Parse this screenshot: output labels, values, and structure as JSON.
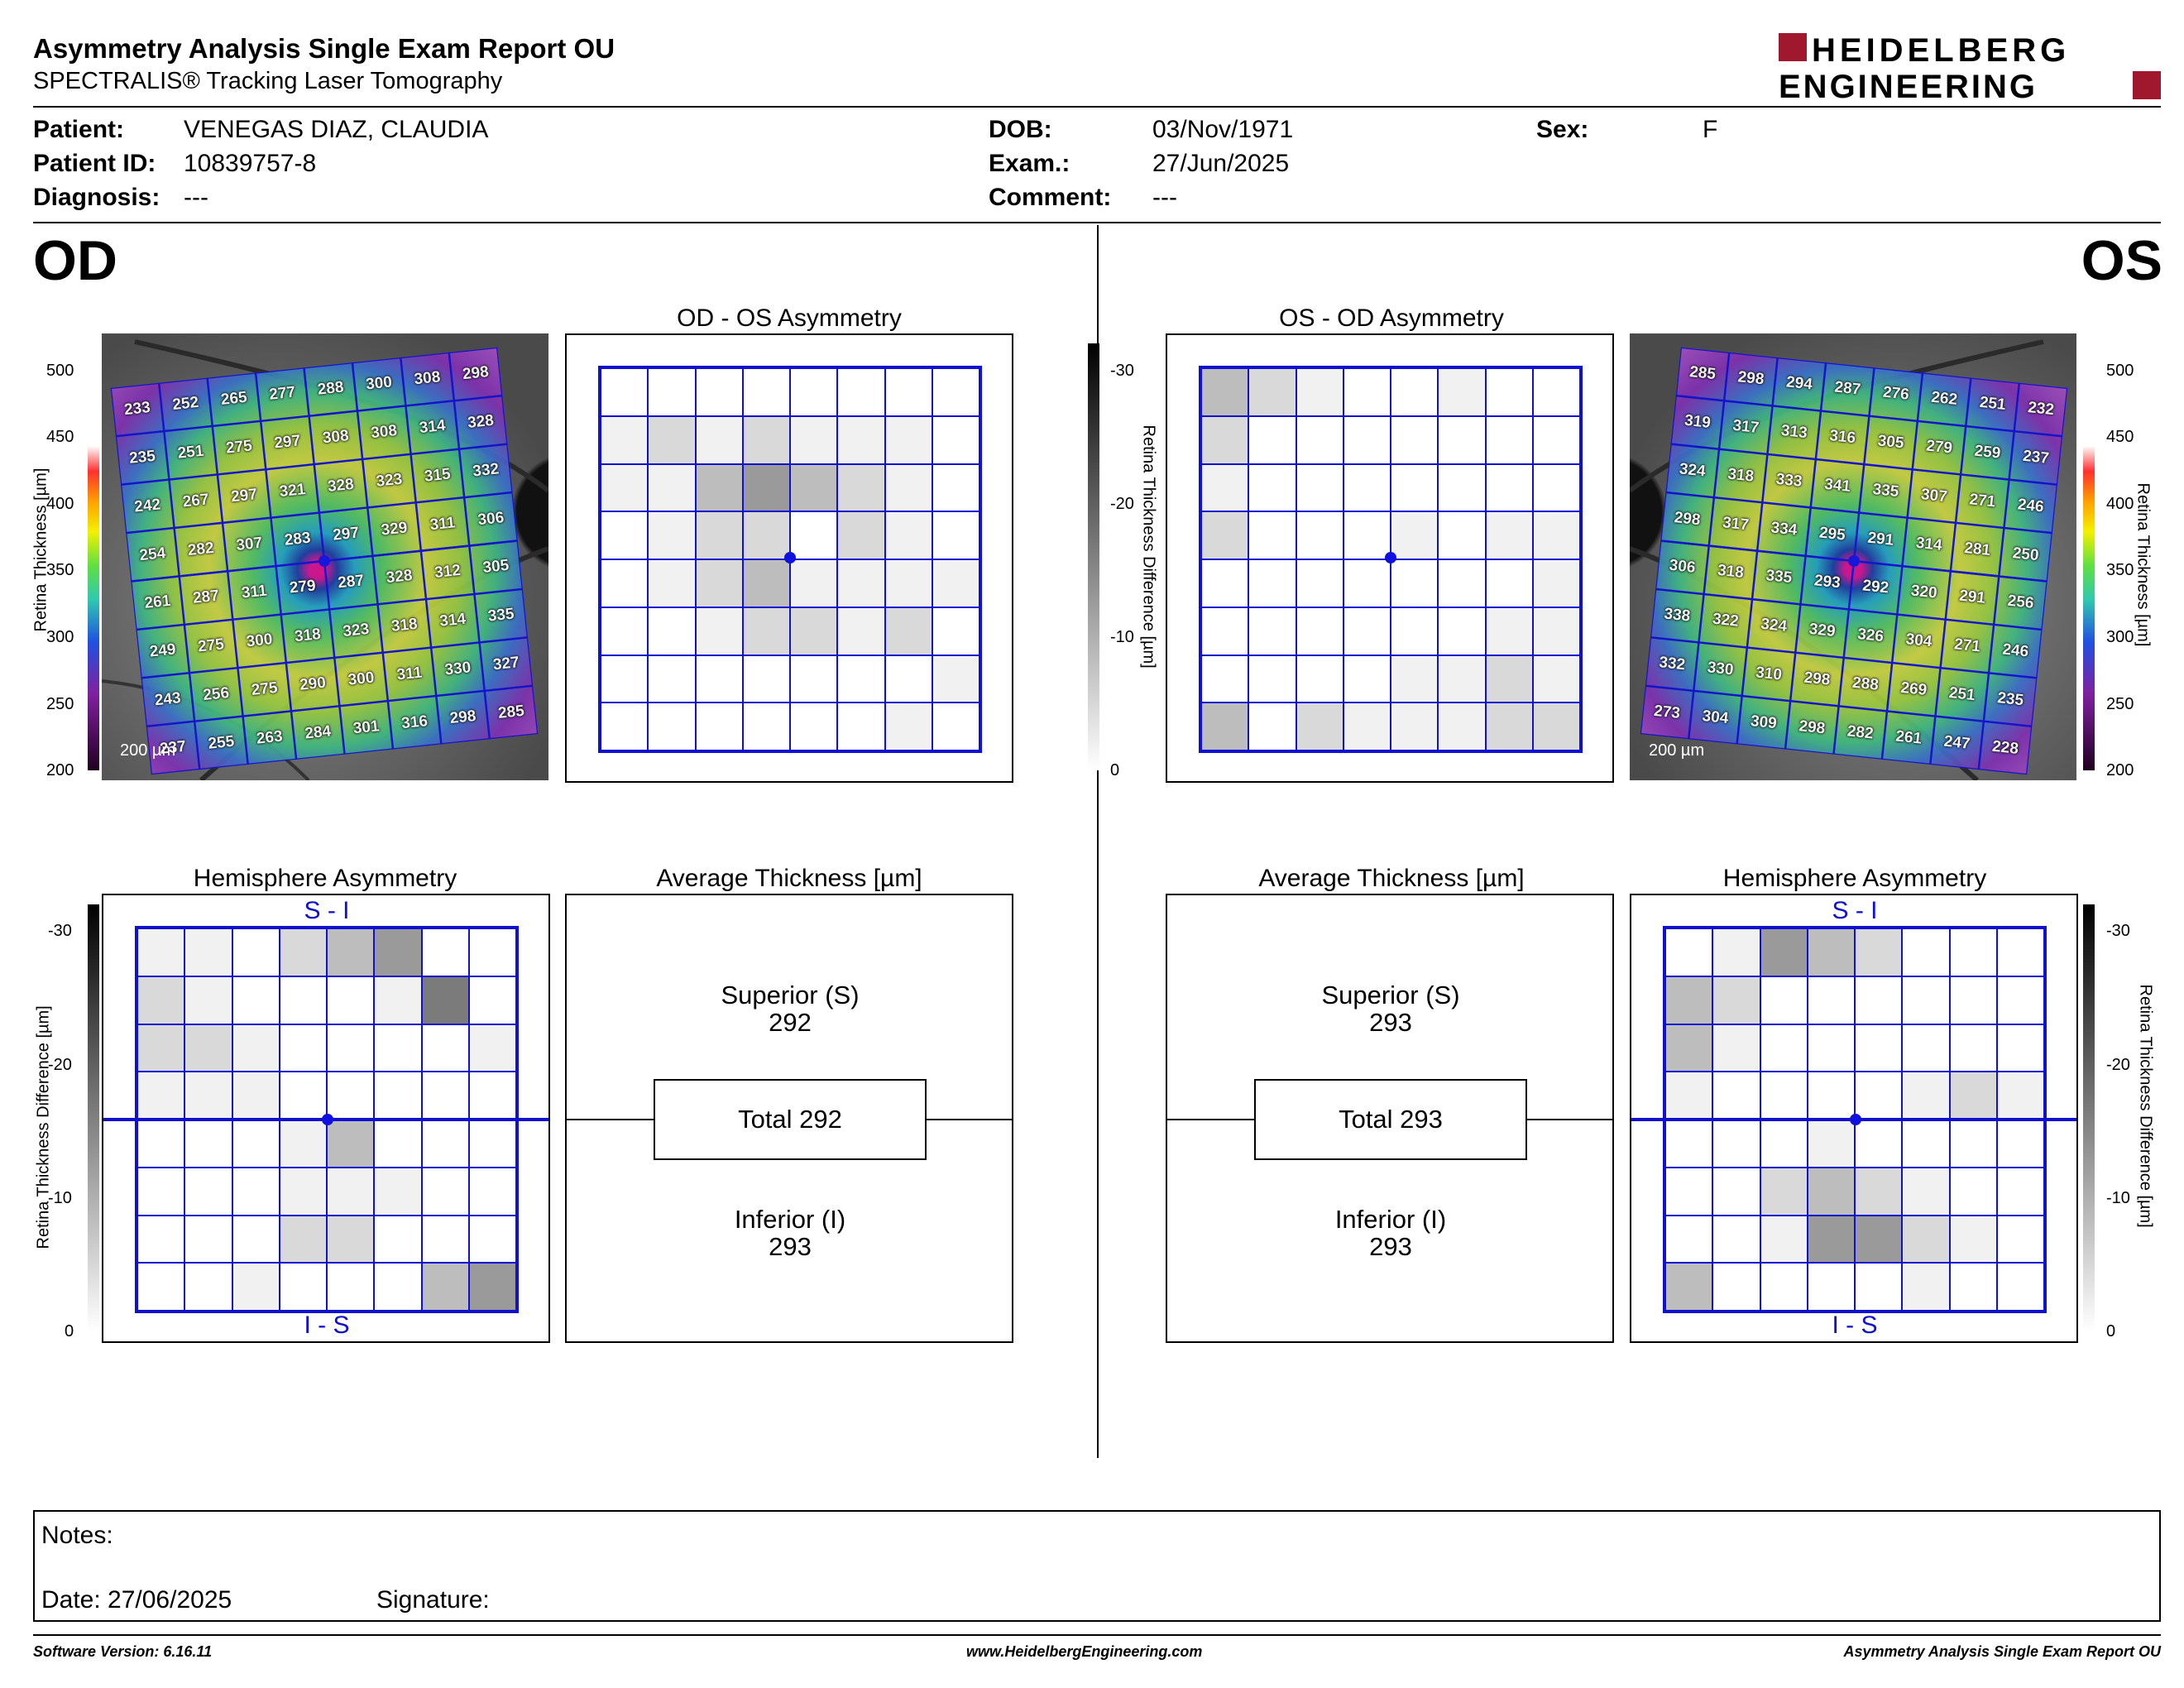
{
  "header": {
    "title": "Asymmetry Analysis Single Exam Report OU",
    "subtitle": "SPECTRALIS® Tracking Laser Tomography",
    "logo_line1": "HEIDELBERG",
    "logo_line2": "ENGINEERING",
    "logo_color": "#a0182e"
  },
  "patient": {
    "patient_label": "Patient:",
    "patient_value": "VENEGAS DIAZ, CLAUDIA",
    "id_label": "Patient ID:",
    "id_value": "10839757-8",
    "diag_label": "Diagnosis:",
    "diag_value": "---",
    "dob_label": "DOB:",
    "dob_value": "03/Nov/1971",
    "exam_label": "Exam.:",
    "exam_value": "27/Jun/2025",
    "comment_label": "Comment:",
    "comment_value": "---",
    "sex_label": "Sex:",
    "sex_value": "F"
  },
  "eyes": {
    "od": "OD",
    "os": "OS"
  },
  "titles": {
    "od_os": "OD - OS Asymmetry",
    "os_od": "OS - OD Asymmetry",
    "hemi": "Hemisphere Asymmetry",
    "avg": "Average Thickness [µm]"
  },
  "scales": {
    "thickness_label": "Retina  Thickness [µm]",
    "thickness_ticks": [
      "500",
      "450",
      "400",
      "350",
      "300",
      "250",
      "200"
    ],
    "diff_label": "Retina Thickness Difference [µm]",
    "diff_ticks": [
      "-30",
      "-20",
      "-10",
      "0"
    ],
    "scale_text": "200 µm"
  },
  "hemi_labels": {
    "top": "S - I",
    "bottom": "I - S"
  },
  "od_thickness": [
    [
      233,
      252,
      265,
      277,
      288,
      300,
      308,
      298
    ],
    [
      235,
      251,
      275,
      297,
      308,
      308,
      314,
      328
    ],
    [
      242,
      267,
      297,
      321,
      328,
      323,
      315,
      332
    ],
    [
      254,
      282,
      307,
      283,
      297,
      329,
      311,
      306
    ],
    [
      261,
      287,
      311,
      279,
      287,
      328,
      312,
      305
    ],
    [
      249,
      275,
      300,
      318,
      323,
      318,
      314,
      335
    ],
    [
      243,
      256,
      275,
      290,
      300,
      311,
      330,
      327
    ],
    [
      237,
      255,
      263,
      284,
      301,
      316,
      298,
      285
    ]
  ],
  "os_thickness": [
    [
      285,
      298,
      294,
      287,
      276,
      262,
      251,
      232
    ],
    [
      319,
      317,
      313,
      316,
      305,
      279,
      259,
      237
    ],
    [
      324,
      318,
      333,
      341,
      335,
      307,
      271,
      246
    ],
    [
      298,
      317,
      334,
      295,
      291,
      314,
      281,
      250
    ],
    [
      306,
      318,
      335,
      293,
      292,
      320,
      291,
      256
    ],
    [
      338,
      322,
      324,
      329,
      326,
      304,
      271,
      246
    ],
    [
      332,
      330,
      310,
      298,
      288,
      269,
      251,
      235
    ],
    [
      273,
      304,
      309,
      298,
      282,
      261,
      247,
      228
    ]
  ],
  "od_asym_grid": [
    [
      0,
      0,
      0,
      0,
      0,
      0,
      0,
      0
    ],
    [
      1,
      2,
      1,
      2,
      1,
      1,
      1,
      0
    ],
    [
      1,
      1,
      3,
      4,
      3,
      2,
      1,
      0
    ],
    [
      0,
      1,
      2,
      2,
      0,
      2,
      1,
      0
    ],
    [
      0,
      1,
      2,
      3,
      1,
      1,
      1,
      1
    ],
    [
      0,
      0,
      1,
      2,
      2,
      1,
      2,
      0
    ],
    [
      0,
      0,
      0,
      0,
      0,
      0,
      0,
      1
    ],
    [
      0,
      0,
      0,
      0,
      0,
      0,
      1,
      0
    ]
  ],
  "os_asym_grid": [
    [
      3,
      2,
      1,
      0,
      0,
      1,
      0,
      0
    ],
    [
      2,
      0,
      0,
      0,
      0,
      0,
      0,
      0
    ],
    [
      1,
      0,
      0,
      0,
      0,
      0,
      0,
      0
    ],
    [
      2,
      0,
      0,
      0,
      1,
      0,
      1,
      1
    ],
    [
      0,
      0,
      0,
      0,
      0,
      0,
      0,
      1
    ],
    [
      0,
      0,
      0,
      0,
      0,
      0,
      1,
      1
    ],
    [
      0,
      0,
      0,
      0,
      1,
      1,
      2,
      1
    ],
    [
      3,
      0,
      2,
      1,
      1,
      1,
      2,
      2
    ]
  ],
  "od_hemi_grid": [
    [
      1,
      1,
      0,
      2,
      3,
      4,
      0,
      0
    ],
    [
      2,
      1,
      0,
      0,
      0,
      1,
      5,
      0
    ],
    [
      2,
      2,
      1,
      0,
      0,
      0,
      0,
      1
    ],
    [
      1,
      1,
      1,
      0,
      0,
      0,
      0,
      0
    ],
    [
      0,
      0,
      0,
      1,
      3,
      0,
      0,
      0
    ],
    [
      0,
      0,
      0,
      1,
      1,
      1,
      0,
      0
    ],
    [
      0,
      0,
      0,
      2,
      2,
      0,
      0,
      0
    ],
    [
      0,
      0,
      1,
      0,
      0,
      0,
      3,
      4
    ]
  ],
  "os_hemi_grid": [
    [
      0,
      1,
      4,
      3,
      2,
      0,
      0,
      0
    ],
    [
      3,
      2,
      0,
      0,
      0,
      0,
      0,
      0
    ],
    [
      3,
      1,
      0,
      0,
      0,
      0,
      0,
      0
    ],
    [
      1,
      0,
      0,
      0,
      0,
      1,
      2,
      1
    ],
    [
      0,
      0,
      0,
      1,
      0,
      0,
      0,
      0
    ],
    [
      0,
      0,
      2,
      3,
      2,
      1,
      0,
      0
    ],
    [
      0,
      0,
      1,
      4,
      4,
      2,
      1,
      0
    ],
    [
      3,
      0,
      0,
      0,
      0,
      1,
      0,
      0
    ]
  ],
  "avg_od": {
    "superior_label": "Superior (S)",
    "superior": "292",
    "total": "Total 292",
    "inferior_label": "Inferior (I)",
    "inferior": "293"
  },
  "avg_os": {
    "superior_label": "Superior (S)",
    "superior": "293",
    "total": "Total 293",
    "inferior_label": "Inferior (I)",
    "inferior": "293"
  },
  "notes": {
    "label": "Notes:",
    "date": "Date: 27/06/2025",
    "signature": "Signature:"
  },
  "footer": {
    "version": "Software Version: 6.16.11",
    "url": "www.HeidelbergEngineering.com",
    "report": "Asymmetry Analysis Single Exam Report OU"
  }
}
